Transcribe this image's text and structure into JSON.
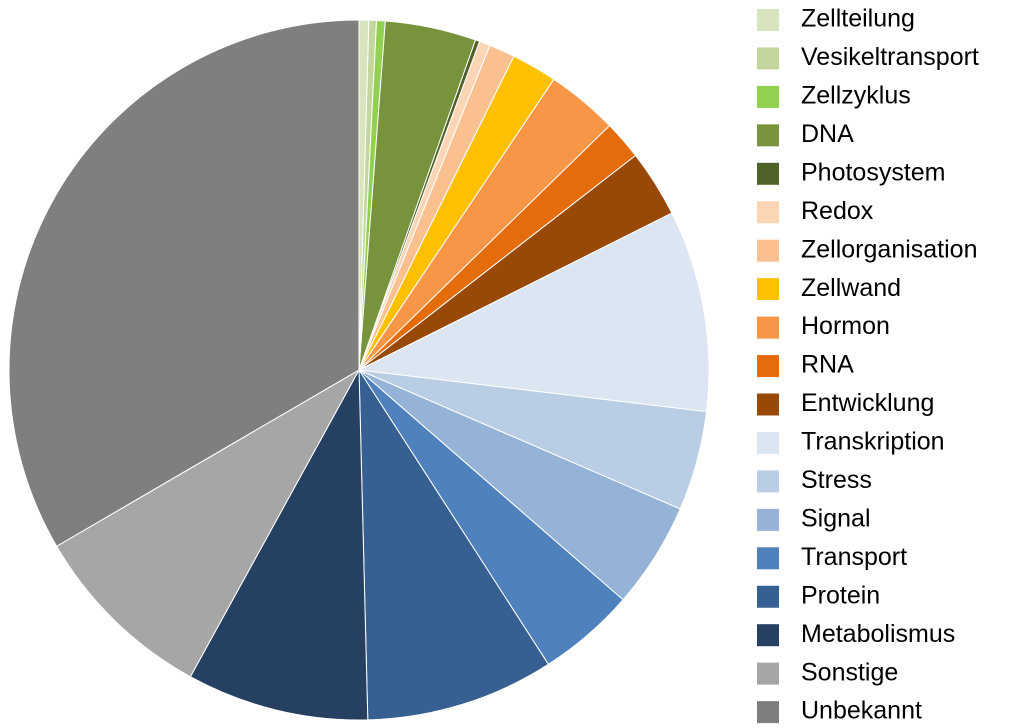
{
  "chart_data": {
    "type": "pie",
    "categories": [
      "Zellteilung",
      "Vesikeltransport",
      "Zellzyklus",
      "DNA",
      "Photosystem",
      "Redox",
      "Zellorganisation",
      "Zellwand",
      "Hormon",
      "RNA",
      "Entwicklung",
      "Transkription",
      "Stress",
      "Signal",
      "Transport",
      "Protein",
      "Metabolismus",
      "Sonstige",
      "Unbekannt"
    ],
    "values": [
      0.45,
      0.35,
      0.4,
      4.2,
      0.2,
      0.5,
      1.2,
      2.1,
      3.3,
      1.8,
      3.1,
      9.3,
      4.6,
      4.9,
      4.5,
      8.7,
      8.4,
      8.6,
      33.4
    ],
    "colors": [
      "#d7e4bd",
      "#c3d69b",
      "#92d050",
      "#77933c",
      "#4f6228",
      "#fcd5b5",
      "#fac090",
      "#ffc000",
      "#f79646",
      "#e46c0a",
      "#984807",
      "#dce6f2",
      "#b9cde5",
      "#95b3d7",
      "#4f81bd",
      "#376092",
      "#254061",
      "#a6a6a6",
      "#7f7f7f"
    ],
    "legend": "right"
  }
}
